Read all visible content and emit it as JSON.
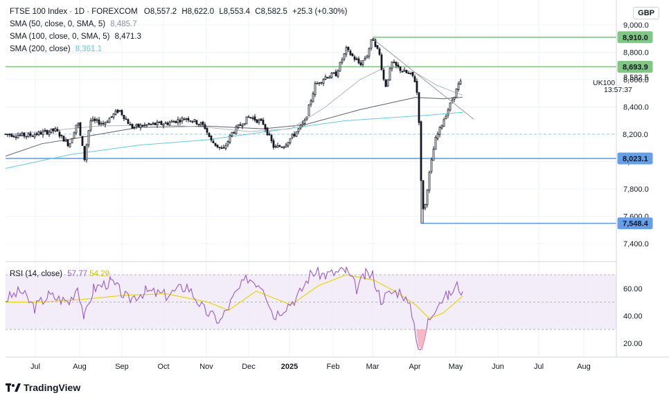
{
  "header": {
    "title": "FTSE 100 Index · 1D · FOREXCOM",
    "open": "O8,557.2",
    "high": "H8,622.0",
    "low": "L8,553.4",
    "close": "C8,582.5",
    "change": "+25.3 (+0.30%)"
  },
  "indicators": [
    {
      "label": "SMA (50, close, 0, SMA, 5)",
      "value": "8,485.7",
      "color": "#b2b5be"
    },
    {
      "label": "SMA (100, close, 0, SMA, 5)",
      "value": "8,471.3",
      "color": "#5d606b"
    },
    {
      "label": "SMA (200, close)",
      "value": "8,361.1",
      "color": "#5ecde0"
    }
  ],
  "rsi_legend": {
    "label": "RSI (14, close)",
    "value": "57.77",
    "ma_value": "54.29"
  },
  "currency": "GBP",
  "symbol_tag": "UK100",
  "countdown": "13:57:37",
  "brand": "TradingView",
  "chart_data": {
    "type": "candlestick",
    "title": "FTSE 100 Index · 1D · FOREXCOM",
    "ylim": [
      7300,
      9100
    ],
    "y_ticks": [
      "7,400.0",
      "7,600.0",
      "7,800.0",
      "8,000.0",
      "8,200.0",
      "8,400.0",
      "8,600.0",
      "8,800.0",
      "9,000.0"
    ],
    "x_ticks": [
      "Jul",
      "Aug",
      "Sep",
      "Oct",
      "Nov",
      "Dec",
      "2025",
      "Feb",
      "Mar",
      "Apr",
      "May",
      "Jun",
      "Jul",
      "Aug"
    ],
    "monthly_closes": {
      "months": [
        "Jun",
        "Jul",
        "Aug",
        "Sep",
        "Oct",
        "Nov",
        "Dec",
        "Jan",
        "Feb",
        "Mar",
        "Apr",
        "May"
      ],
      "approx_close": [
        8165,
        8370,
        8375,
        8240,
        8110,
        8290,
        8170,
        8675,
        8810,
        8580,
        8495,
        8582
      ]
    },
    "horizontal_levels": [
      {
        "label": "8,910.0",
        "price": 8910.0,
        "color": "#81c784"
      },
      {
        "label": "8,693.9",
        "price": 8693.9,
        "color": "#81c784"
      },
      {
        "label": "8,200.0",
        "price": 8200.0,
        "color": "#90caf9",
        "style": "dashed"
      },
      {
        "label": "8,023.1",
        "price": 8023.1,
        "color": "#64a0e8"
      },
      {
        "label": "7,548.4",
        "price": 7548.4,
        "color": "#64a0e8"
      }
    ],
    "last_price": "8,582.5",
    "rsi": {
      "ylim": [
        10,
        80
      ],
      "y_ticks": [
        "20.00",
        "40.00",
        "60.00"
      ],
      "levels": [
        70,
        50,
        30
      ],
      "last": 57.77,
      "ma_last": 54.29,
      "min": 14.5,
      "max": 77
    }
  }
}
